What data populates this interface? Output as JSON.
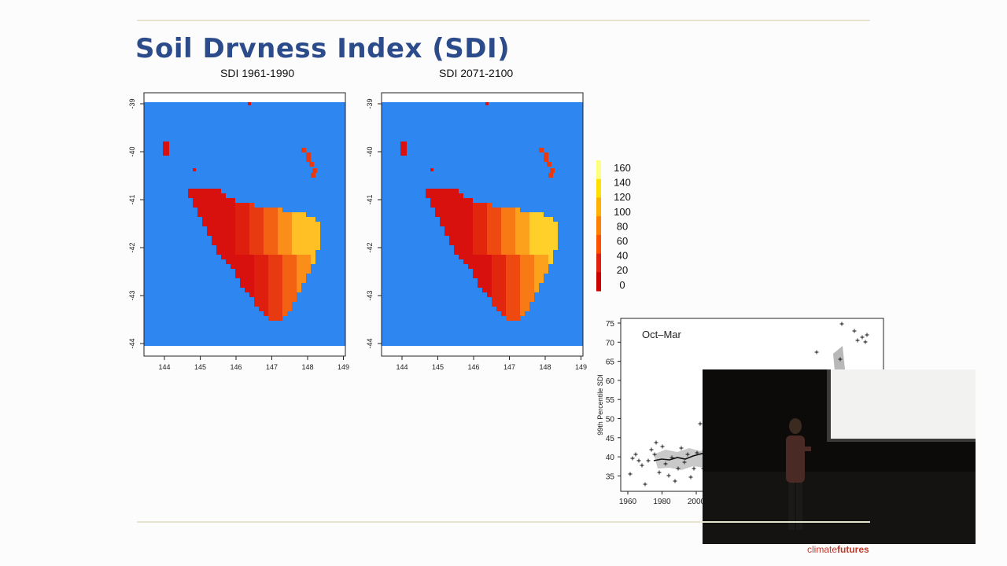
{
  "slide": {
    "title": "Soil Drvness Index (SDI)",
    "brand_prefix": "climate",
    "brand_suffix": "futures"
  },
  "maps": [
    {
      "title": "SDI 1961-1990",
      "x_ticks": [
        "144",
        "145",
        "146",
        "147",
        "148",
        "149"
      ],
      "y_ticks": [
        "-39",
        "-40",
        "-41",
        "-42",
        "-43",
        "-44"
      ]
    },
    {
      "title": "SDI 2071-2100",
      "x_ticks": [
        "144",
        "145",
        "146",
        "147",
        "148",
        "149"
      ],
      "y_ticks": [
        "-39",
        "-40",
        "-41",
        "-42",
        "-43",
        "-44"
      ]
    }
  ],
  "colorbar": {
    "labels": [
      "160",
      "140",
      "120",
      "100",
      "80",
      "60",
      "40",
      "20",
      "0"
    ],
    "colors": [
      "#ffff80",
      "#ffe000",
      "#ffb000",
      "#ff8000",
      "#ff5000",
      "#e02010",
      "#cc0000"
    ]
  },
  "timeseries": {
    "annotation": "Oct–Mar",
    "ylabel": "99th Percentile SDI",
    "y_ticks": [
      "75",
      "70",
      "65",
      "60",
      "55",
      "50",
      "45",
      "40",
      "35"
    ],
    "x_ticks": [
      "1960",
      "1980",
      "2000"
    ]
  },
  "colors": {
    "title": "#2b4b8a",
    "ocean": "#2e86f0",
    "land_dry": "#d8110f"
  }
}
